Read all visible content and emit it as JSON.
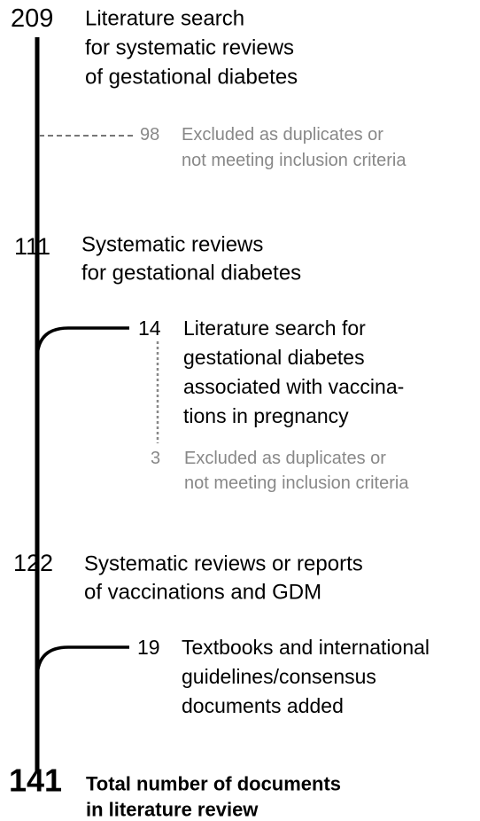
{
  "steps": [
    {
      "count": 209,
      "lines": [
        "Literature search",
        "for systematic reviews",
        "of gestational diabetes"
      ]
    },
    {
      "count": 98,
      "lines": [
        "Excluded as duplicates or",
        "not meeting inclusion criteria"
      ]
    },
    {
      "count": 111,
      "lines": [
        "Systematic reviews",
        "for gestational diabetes"
      ]
    },
    {
      "count": 14,
      "lines": [
        "Literature search for",
        "gestational diabetes",
        "associated with vaccina-",
        "tions in pregnancy"
      ]
    },
    {
      "count": 3,
      "lines": [
        "Excluded as duplicates or",
        "not meeting inclusion criteria"
      ]
    },
    {
      "count": 122,
      "lines": [
        "Systematic reviews or reports",
        "of vaccinations and GDM"
      ]
    },
    {
      "count": 19,
      "lines": [
        "Textbooks and international",
        "guidelines/consensus",
        "documents added"
      ]
    },
    {
      "count": 141,
      "lines": [
        "Total number of documents",
        "in literature review"
      ]
    }
  ]
}
